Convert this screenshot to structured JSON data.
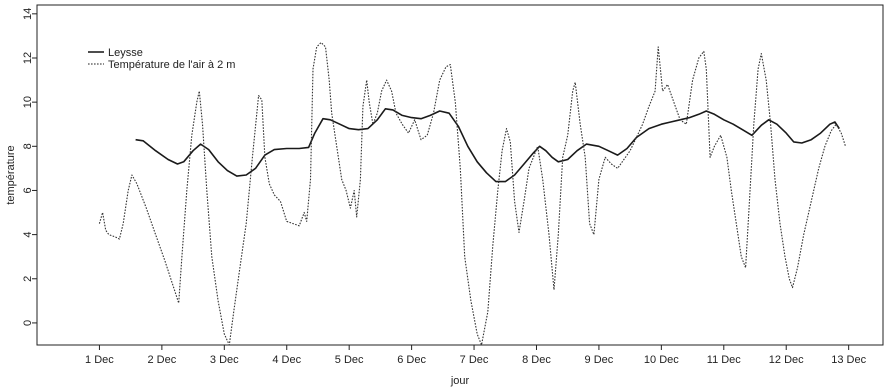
{
  "chart_data": {
    "type": "line",
    "title": "",
    "xlabel": "jour",
    "ylabel": "température",
    "xlim": [
      0.0,
      13.55
    ],
    "ylim": [
      -1.0,
      14.4
    ],
    "x_ticks": [
      {
        "x": 1,
        "label": "1 Dec"
      },
      {
        "x": 2,
        "label": "2 Dec"
      },
      {
        "x": 3,
        "label": "3 Dec"
      },
      {
        "x": 4,
        "label": "4 Dec"
      },
      {
        "x": 5,
        "label": "5 Dec"
      },
      {
        "x": 6,
        "label": "6 Dec"
      },
      {
        "x": 7,
        "label": "7 Dec"
      },
      {
        "x": 8,
        "label": "8 Dec"
      },
      {
        "x": 9,
        "label": "9 Dec"
      },
      {
        "x": 10,
        "label": "10 Dec"
      },
      {
        "x": 11,
        "label": "11 Dec"
      },
      {
        "x": 12,
        "label": "12 Dec"
      },
      {
        "x": 13,
        "label": "13 Dec"
      }
    ],
    "y_ticks": [
      0,
      2,
      4,
      6,
      8,
      10,
      12,
      14
    ],
    "grid": false,
    "legend_position": "top-left",
    "series": [
      {
        "name": "Leysse",
        "style": "solid",
        "color": "#1a1a1a",
        "points": [
          [
            1.58,
            8.3
          ],
          [
            1.7,
            8.25
          ],
          [
            1.9,
            7.8
          ],
          [
            2.1,
            7.4
          ],
          [
            2.25,
            7.2
          ],
          [
            2.35,
            7.3
          ],
          [
            2.5,
            7.8
          ],
          [
            2.62,
            8.1
          ],
          [
            2.75,
            7.85
          ],
          [
            2.9,
            7.3
          ],
          [
            3.05,
            6.9
          ],
          [
            3.2,
            6.65
          ],
          [
            3.35,
            6.7
          ],
          [
            3.5,
            7.0
          ],
          [
            3.65,
            7.6
          ],
          [
            3.8,
            7.85
          ],
          [
            4.0,
            7.9
          ],
          [
            4.2,
            7.9
          ],
          [
            4.35,
            7.95
          ],
          [
            4.45,
            8.6
          ],
          [
            4.58,
            9.25
          ],
          [
            4.7,
            9.2
          ],
          [
            4.85,
            9.0
          ],
          [
            5.0,
            8.8
          ],
          [
            5.15,
            8.75
          ],
          [
            5.3,
            8.8
          ],
          [
            5.45,
            9.2
          ],
          [
            5.58,
            9.7
          ],
          [
            5.7,
            9.65
          ],
          [
            5.85,
            9.4
          ],
          [
            6.0,
            9.3
          ],
          [
            6.15,
            9.25
          ],
          [
            6.3,
            9.4
          ],
          [
            6.45,
            9.6
          ],
          [
            6.6,
            9.5
          ],
          [
            6.75,
            8.9
          ],
          [
            6.9,
            8.0
          ],
          [
            7.05,
            7.3
          ],
          [
            7.2,
            6.8
          ],
          [
            7.35,
            6.4
          ],
          [
            7.5,
            6.4
          ],
          [
            7.65,
            6.7
          ],
          [
            7.8,
            7.2
          ],
          [
            7.95,
            7.7
          ],
          [
            8.05,
            8.0
          ],
          [
            8.15,
            7.8
          ],
          [
            8.25,
            7.5
          ],
          [
            8.35,
            7.3
          ],
          [
            8.5,
            7.4
          ],
          [
            8.65,
            7.8
          ],
          [
            8.8,
            8.1
          ],
          [
            9.0,
            8.0
          ],
          [
            9.15,
            7.8
          ],
          [
            9.3,
            7.6
          ],
          [
            9.45,
            7.9
          ],
          [
            9.6,
            8.4
          ],
          [
            9.8,
            8.8
          ],
          [
            10.0,
            9.0
          ],
          [
            10.15,
            9.1
          ],
          [
            10.3,
            9.2
          ],
          [
            10.45,
            9.3
          ],
          [
            10.6,
            9.45
          ],
          [
            10.72,
            9.6
          ],
          [
            10.85,
            9.45
          ],
          [
            11.0,
            9.2
          ],
          [
            11.15,
            9.0
          ],
          [
            11.3,
            8.75
          ],
          [
            11.45,
            8.5
          ],
          [
            11.6,
            8.95
          ],
          [
            11.72,
            9.2
          ],
          [
            11.85,
            9.0
          ],
          [
            12.0,
            8.6
          ],
          [
            12.12,
            8.2
          ],
          [
            12.25,
            8.15
          ],
          [
            12.4,
            8.3
          ],
          [
            12.55,
            8.6
          ],
          [
            12.7,
            9.0
          ],
          [
            12.78,
            9.1
          ],
          [
            12.85,
            8.8
          ]
        ]
      },
      {
        "name": "Température de l'air à 2 m",
        "style": "dotted",
        "color": "#333333",
        "points": [
          [
            1.0,
            4.5
          ],
          [
            1.05,
            5.0
          ],
          [
            1.1,
            4.2
          ],
          [
            1.15,
            4.0
          ],
          [
            1.25,
            3.9
          ],
          [
            1.32,
            3.8
          ],
          [
            1.38,
            4.5
          ],
          [
            1.46,
            6.0
          ],
          [
            1.52,
            6.7
          ],
          [
            1.6,
            6.3
          ],
          [
            1.75,
            5.2
          ],
          [
            1.9,
            4.0
          ],
          [
            2.05,
            2.8
          ],
          [
            2.2,
            1.5
          ],
          [
            2.27,
            0.9
          ],
          [
            2.32,
            3.0
          ],
          [
            2.4,
            6.0
          ],
          [
            2.48,
            8.5
          ],
          [
            2.56,
            10.0
          ],
          [
            2.6,
            10.5
          ],
          [
            2.65,
            9.0
          ],
          [
            2.72,
            6.0
          ],
          [
            2.8,
            3.0
          ],
          [
            2.9,
            1.0
          ],
          [
            3.0,
            -0.5
          ],
          [
            3.08,
            -1.0
          ],
          [
            3.15,
            0.5
          ],
          [
            3.25,
            2.5
          ],
          [
            3.35,
            4.5
          ],
          [
            3.45,
            7.5
          ],
          [
            3.55,
            10.3
          ],
          [
            3.6,
            10.1
          ],
          [
            3.65,
            7.5
          ],
          [
            3.72,
            6.3
          ],
          [
            3.8,
            5.8
          ],
          [
            3.9,
            5.5
          ],
          [
            4.0,
            4.6
          ],
          [
            4.1,
            4.5
          ],
          [
            4.2,
            4.4
          ],
          [
            4.28,
            5.0
          ],
          [
            4.32,
            4.6
          ],
          [
            4.38,
            6.5
          ],
          [
            4.42,
            11.5
          ],
          [
            4.48,
            12.5
          ],
          [
            4.55,
            12.7
          ],
          [
            4.62,
            12.5
          ],
          [
            4.68,
            11.0
          ],
          [
            4.72,
            9.5
          ],
          [
            4.8,
            8.0
          ],
          [
            4.88,
            6.5
          ],
          [
            4.95,
            6.0
          ],
          [
            5.02,
            5.2
          ],
          [
            5.08,
            6.0
          ],
          [
            5.12,
            4.8
          ],
          [
            5.18,
            6.5
          ],
          [
            5.22,
            9.8
          ],
          [
            5.28,
            11.0
          ],
          [
            5.32,
            10.0
          ],
          [
            5.38,
            9.0
          ],
          [
            5.45,
            9.5
          ],
          [
            5.52,
            10.5
          ],
          [
            5.6,
            11.0
          ],
          [
            5.68,
            10.5
          ],
          [
            5.75,
            9.5
          ],
          [
            5.85,
            9.0
          ],
          [
            5.95,
            8.6
          ],
          [
            6.05,
            9.2
          ],
          [
            6.15,
            8.3
          ],
          [
            6.25,
            8.5
          ],
          [
            6.35,
            9.5
          ],
          [
            6.45,
            11.0
          ],
          [
            6.55,
            11.6
          ],
          [
            6.62,
            11.7
          ],
          [
            6.7,
            10.0
          ],
          [
            6.78,
            7.0
          ],
          [
            6.85,
            3.0
          ],
          [
            6.95,
            1.0
          ],
          [
            7.05,
            -0.5
          ],
          [
            7.12,
            -1.0
          ],
          [
            7.22,
            0.5
          ],
          [
            7.3,
            3.5
          ],
          [
            7.38,
            6.0
          ],
          [
            7.45,
            7.8
          ],
          [
            7.52,
            8.8
          ],
          [
            7.58,
            8.2
          ],
          [
            7.65,
            5.5
          ],
          [
            7.72,
            4.1
          ],
          [
            7.8,
            5.5
          ],
          [
            7.88,
            7.0
          ],
          [
            7.95,
            7.5
          ],
          [
            8.02,
            8.0
          ],
          [
            8.1,
            6.5
          ],
          [
            8.2,
            4.0
          ],
          [
            8.28,
            1.5
          ],
          [
            8.35,
            4.0
          ],
          [
            8.42,
            7.5
          ],
          [
            8.5,
            8.5
          ],
          [
            8.58,
            10.5
          ],
          [
            8.62,
            10.9
          ],
          [
            8.7,
            9.0
          ],
          [
            8.78,
            7.5
          ],
          [
            8.85,
            4.5
          ],
          [
            8.92,
            4.0
          ],
          [
            9.0,
            6.5
          ],
          [
            9.1,
            7.5
          ],
          [
            9.2,
            7.2
          ],
          [
            9.3,
            7.0
          ],
          [
            9.4,
            7.4
          ],
          [
            9.5,
            7.8
          ],
          [
            9.6,
            8.4
          ],
          [
            9.7,
            9.0
          ],
          [
            9.8,
            9.8
          ],
          [
            9.9,
            10.5
          ],
          [
            9.95,
            12.5
          ],
          [
            10.02,
            10.5
          ],
          [
            10.1,
            10.8
          ],
          [
            10.2,
            10.0
          ],
          [
            10.3,
            9.2
          ],
          [
            10.4,
            9.0
          ],
          [
            10.5,
            11.0
          ],
          [
            10.6,
            12.0
          ],
          [
            10.68,
            12.3
          ],
          [
            10.72,
            11.5
          ],
          [
            10.78,
            7.5
          ],
          [
            10.85,
            8.0
          ],
          [
            10.95,
            8.5
          ],
          [
            11.05,
            7.5
          ],
          [
            11.12,
            6.0
          ],
          [
            11.2,
            4.5
          ],
          [
            11.28,
            3.0
          ],
          [
            11.35,
            2.5
          ],
          [
            11.4,
            5.0
          ],
          [
            11.48,
            9.0
          ],
          [
            11.55,
            11.5
          ],
          [
            11.6,
            12.2
          ],
          [
            11.68,
            11.0
          ],
          [
            11.75,
            9.0
          ],
          [
            11.82,
            6.5
          ],
          [
            11.9,
            4.5
          ],
          [
            11.98,
            3.0
          ],
          [
            12.05,
            2.0
          ],
          [
            12.1,
            1.6
          ],
          [
            12.18,
            2.5
          ],
          [
            12.28,
            4.0
          ],
          [
            12.4,
            5.5
          ],
          [
            12.52,
            7.0
          ],
          [
            12.62,
            8.0
          ],
          [
            12.72,
            8.7
          ],
          [
            12.8,
            9.0
          ],
          [
            12.88,
            8.6
          ],
          [
            12.95,
            8.0
          ]
        ]
      }
    ]
  },
  "legend": {
    "entries": [
      {
        "label": "Leysse",
        "style": "solid"
      },
      {
        "label": "Température de l'air à 2 m",
        "style": "dotted"
      }
    ]
  }
}
